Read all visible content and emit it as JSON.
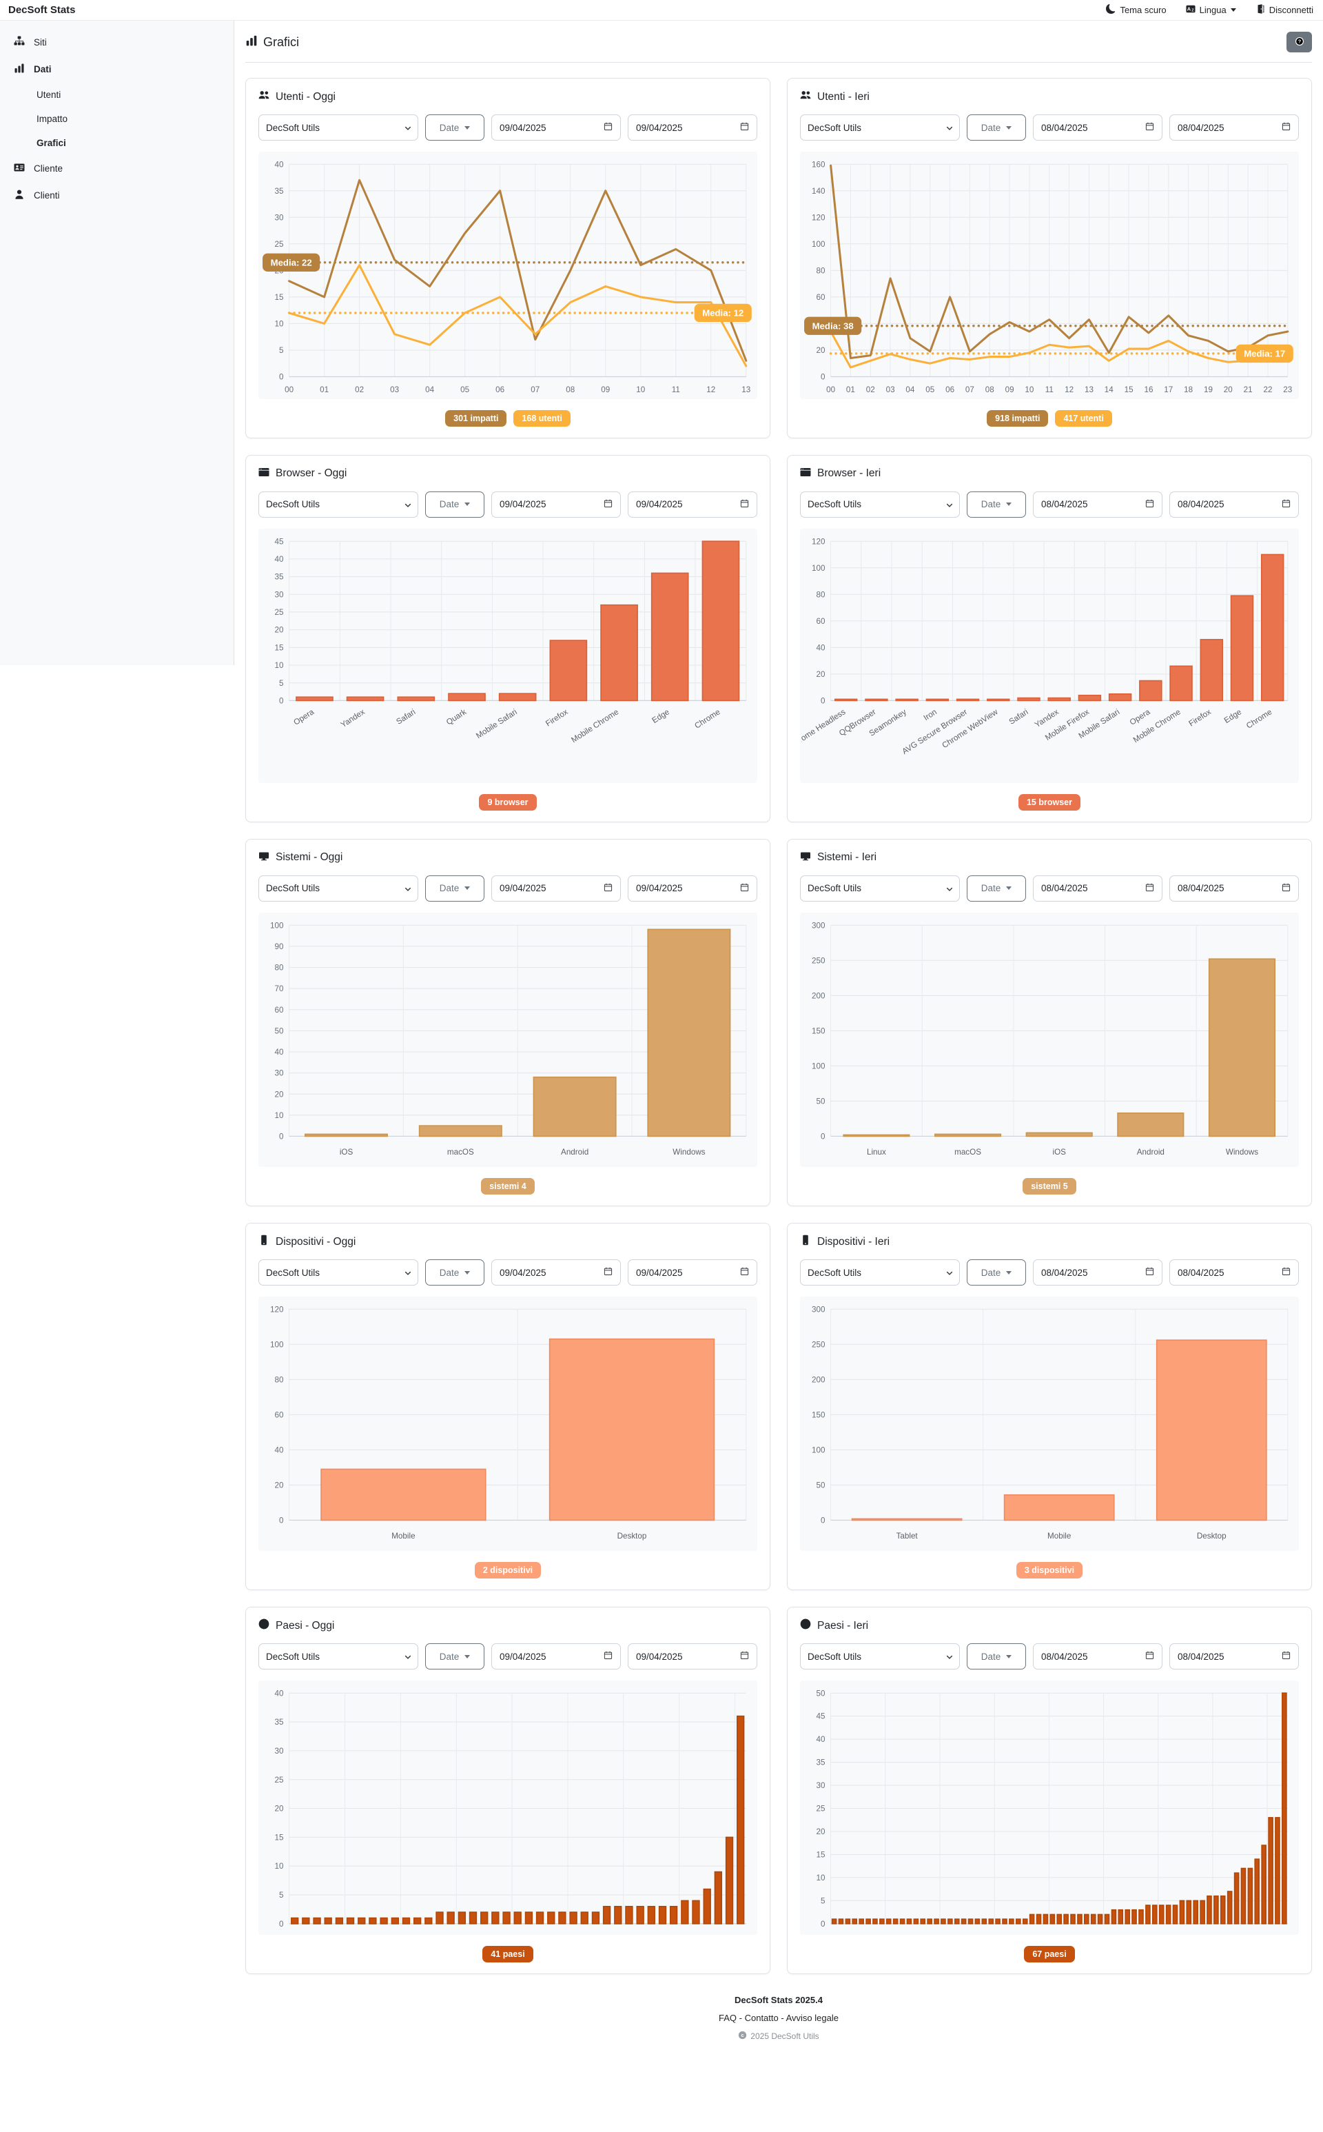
{
  "topbar": {
    "brand": "DecSoft Stats",
    "theme_label": "Tema scuro",
    "language_label": "Lingua",
    "logout_label": "Disconnetti"
  },
  "sidebar": {
    "items": [
      {
        "label": "Siti",
        "icon": "sitemap-icon",
        "bold": false,
        "indent": false
      },
      {
        "label": "Dati",
        "icon": "bar-chart-icon",
        "bold": true,
        "indent": false
      },
      {
        "label": "Utenti",
        "icon": null,
        "bold": false,
        "indent": true
      },
      {
        "label": "Impatto",
        "icon": null,
        "bold": false,
        "indent": true
      },
      {
        "label": "Grafici",
        "icon": null,
        "bold": true,
        "indent": true
      },
      {
        "label": "Cliente",
        "icon": "id-card-icon",
        "bold": false,
        "indent": false
      },
      {
        "label": "Clienti",
        "icon": "person-icon",
        "bold": false,
        "indent": false
      }
    ]
  },
  "header": {
    "title": "Grafici"
  },
  "cards": [
    {
      "id": "utenti-oggi",
      "icon": "people-icon",
      "title": "Utenti - Oggi",
      "site": "DecSoft Utils",
      "date_label": "Date",
      "date_from": "09/04/2025",
      "date_to": "09/04/2025",
      "badges": [
        {
          "label": "301 impatti",
          "color": "#b5813d"
        },
        {
          "label": "168 utenti",
          "color": "#fbb03a"
        }
      ],
      "chart_data": {
        "type": "line",
        "x": [
          "00",
          "01",
          "02",
          "03",
          "04",
          "05",
          "06",
          "07",
          "08",
          "09",
          "10",
          "11",
          "12",
          "13"
        ],
        "series": [
          {
            "name": "impatti",
            "color": "#b5813d",
            "values": [
              18,
              15,
              37,
              22,
              17,
              27,
              35,
              7,
              20,
              35,
              21,
              24,
              20,
              3
            ],
            "media": 21.5,
            "media_label": "Media: 22",
            "pill_side": "left"
          },
          {
            "name": "utenti",
            "color": "#fbb03a",
            "values": [
              12,
              10,
              21,
              8,
              6,
              12,
              15,
              8,
              14,
              17,
              15,
              14,
              14,
              2
            ],
            "media": 12,
            "media_label": "Media: 12",
            "pill_side": "right"
          }
        ],
        "ylim": [
          0,
          40
        ],
        "ystep": 5
      }
    },
    {
      "id": "utenti-ieri",
      "icon": "people-icon",
      "title": "Utenti - Ieri",
      "site": "DecSoft Utils",
      "date_label": "Date",
      "date_from": "08/04/2025",
      "date_to": "08/04/2025",
      "badges": [
        {
          "label": "918 impatti",
          "color": "#b5813d"
        },
        {
          "label": "417 utenti",
          "color": "#fbb03a"
        }
      ],
      "chart_data": {
        "type": "line",
        "x": [
          "00",
          "01",
          "02",
          "03",
          "04",
          "05",
          "06",
          "07",
          "08",
          "09",
          "10",
          "11",
          "12",
          "13",
          "14",
          "15",
          "16",
          "17",
          "18",
          "19",
          "20",
          "21",
          "22",
          "23"
        ],
        "series": [
          {
            "name": "impatti",
            "color": "#b5813d",
            "values": [
              159,
              14,
              16,
              74,
              29,
              19,
              60,
              19,
              32,
              41,
              34,
              43,
              29,
              43,
              18,
              45,
              33,
              46,
              31,
              27,
              19,
              22,
              31,
              34
            ],
            "media": 38.25,
            "media_label": "Media: 38",
            "pill_side": "left"
          },
          {
            "name": "utenti",
            "color": "#fbb03a",
            "values": [
              34,
              7,
              12,
              17,
              13,
              10,
              14,
              13,
              15,
              15,
              18,
              24,
              22,
              23,
              12,
              21,
              21,
              27,
              19,
              14,
              11,
              12,
              22,
              21
            ],
            "media": 17.4,
            "media_label": "Media: 17",
            "pill_side": "right"
          }
        ],
        "ylim": [
          0,
          160
        ],
        "ystep": 20
      }
    },
    {
      "id": "browser-oggi",
      "icon": "window-icon",
      "title": "Browser - Oggi",
      "site": "DecSoft Utils",
      "date_label": "Date",
      "date_from": "09/04/2025",
      "date_to": "09/04/2025",
      "badges": [
        {
          "label": "9 browser",
          "color": "#e8734d"
        }
      ],
      "chart_data": {
        "type": "bar",
        "categories": [
          "Opera",
          "Yandex",
          "Safari",
          "Quark",
          "Mobile Safari",
          "Firefox",
          "Mobile Chrome",
          "Edge",
          "Chrome"
        ],
        "values": [
          1,
          1,
          1,
          2,
          2,
          17,
          27,
          36,
          45
        ],
        "color": "#e8734d",
        "border": "#da6038",
        "ylim": [
          0,
          45
        ],
        "ystep": 5,
        "xlabels": "rotated"
      }
    },
    {
      "id": "browser-ieri",
      "icon": "window-icon",
      "title": "Browser - Ieri",
      "site": "DecSoft Utils",
      "date_label": "Date",
      "date_from": "08/04/2025",
      "date_to": "08/04/2025",
      "badges": [
        {
          "label": "15 browser",
          "color": "#e8734d"
        }
      ],
      "chart_data": {
        "type": "bar",
        "categories": [
          "Chrome Headless",
          "QQBrowser",
          "Seamonkey",
          "Iron",
          "AVG Secure Browser",
          "Chrome WebView",
          "Safari",
          "Yandex",
          "Mobile Firefox",
          "Mobile Safari",
          "Opera",
          "Mobile Chrome",
          "Firefox",
          "Edge",
          "Chrome"
        ],
        "values": [
          1,
          1,
          1,
          1,
          1,
          1,
          2,
          2,
          4,
          5,
          15,
          26,
          46,
          79,
          110
        ],
        "color": "#e8734d",
        "border": "#da6038",
        "ylim": [
          0,
          120
        ],
        "ystep": 20,
        "xlabels": "rotated"
      }
    },
    {
      "id": "sistemi-oggi",
      "icon": "display-icon",
      "title": "Sistemi - Oggi",
      "site": "DecSoft Utils",
      "date_label": "Date",
      "date_from": "09/04/2025",
      "date_to": "09/04/2025",
      "badges": [
        {
          "label": "sistemi 4",
          "color": "#d8a468"
        }
      ],
      "chart_data": {
        "type": "bar",
        "categories": [
          "iOS",
          "macOS",
          "Android",
          "Windows"
        ],
        "values": [
          1,
          5,
          28,
          98
        ],
        "color": "#d8a468",
        "border": "#c9954f",
        "ylim": [
          0,
          100
        ],
        "ystep": 10,
        "xlabels": "horizontal"
      }
    },
    {
      "id": "sistemi-ieri",
      "icon": "display-icon",
      "title": "Sistemi - Ieri",
      "site": "DecSoft Utils",
      "date_label": "Date",
      "date_from": "08/04/2025",
      "date_to": "08/04/2025",
      "badges": [
        {
          "label": "sistemi 5",
          "color": "#d8a468"
        }
      ],
      "chart_data": {
        "type": "bar",
        "categories": [
          "Linux",
          "macOS",
          "iOS",
          "Android",
          "Windows"
        ],
        "values": [
          1,
          3,
          5,
          33,
          252
        ],
        "color": "#d8a468",
        "border": "#c9954f",
        "ylim": [
          0,
          300
        ],
        "ystep": 50,
        "xlabels": "horizontal"
      }
    },
    {
      "id": "dispositivi-oggi",
      "icon": "phone-icon",
      "title": "Dispositivi - Oggi",
      "site": "DecSoft Utils",
      "date_label": "Date",
      "date_from": "09/04/2025",
      "date_to": "09/04/2025",
      "badges": [
        {
          "label": "2 dispositivi",
          "color": "#fca078"
        }
      ],
      "chart_data": {
        "type": "bar",
        "categories": [
          "Mobile",
          "Desktop"
        ],
        "values": [
          29,
          103
        ],
        "color": "#fca078",
        "border": "#ef8a60",
        "ylim": [
          0,
          120
        ],
        "ystep": 20,
        "xlabels": "horizontal"
      }
    },
    {
      "id": "dispositivi-ieri",
      "icon": "phone-icon",
      "title": "Dispositivi - Ieri",
      "site": "DecSoft Utils",
      "date_label": "Date",
      "date_from": "08/04/2025",
      "date_to": "08/04/2025",
      "badges": [
        {
          "label": "3 dispositivi",
          "color": "#fca078"
        }
      ],
      "chart_data": {
        "type": "bar",
        "categories": [
          "Tablet",
          "Mobile",
          "Desktop"
        ],
        "values": [
          2,
          36,
          256
        ],
        "color": "#fca078",
        "border": "#ef8a60",
        "ylim": [
          0,
          300
        ],
        "ystep": 50,
        "xlabels": "horizontal"
      }
    },
    {
      "id": "paesi-oggi",
      "icon": "globe-icon",
      "title": "Paesi - Oggi",
      "site": "DecSoft Utils",
      "date_label": "Date",
      "date_from": "09/04/2025",
      "date_to": "09/04/2025",
      "badges": [
        {
          "label": "41 paesi",
          "color": "#c6500c"
        }
      ],
      "chart_data": {
        "type": "bar",
        "categories": [],
        "values": [
          1,
          1,
          1,
          1,
          1,
          1,
          1,
          1,
          1,
          1,
          1,
          1,
          1,
          2,
          2,
          2,
          2,
          2,
          2,
          2,
          2,
          2,
          2,
          2,
          2,
          2,
          2,
          2,
          3,
          3,
          3,
          3,
          3,
          3,
          3,
          4,
          4,
          6,
          9,
          15,
          36
        ],
        "color": "#c6500c",
        "border": "#b04708",
        "ylim": [
          0,
          40
        ],
        "ystep": 5,
        "xlabels": "none"
      }
    },
    {
      "id": "paesi-ieri",
      "icon": "globe-icon",
      "title": "Paesi - Ieri",
      "site": "DecSoft Utils",
      "date_label": "Date",
      "date_from": "08/04/2025",
      "date_to": "08/04/2025",
      "badges": [
        {
          "label": "67 paesi",
          "color": "#c6500c"
        }
      ],
      "chart_data": {
        "type": "bar",
        "categories": [],
        "values": [
          1,
          1,
          1,
          1,
          1,
          1,
          1,
          1,
          1,
          1,
          1,
          1,
          1,
          1,
          1,
          1,
          1,
          1,
          1,
          1,
          1,
          1,
          1,
          1,
          1,
          1,
          1,
          1,
          1,
          2,
          2,
          2,
          2,
          2,
          2,
          2,
          2,
          2,
          2,
          2,
          2,
          3,
          3,
          3,
          3,
          3,
          4,
          4,
          4,
          4,
          4,
          5,
          5,
          5,
          5,
          6,
          6,
          6,
          7,
          11,
          12,
          12,
          14,
          17,
          23,
          23,
          50
        ],
        "color": "#c6500c",
        "border": "#b04708",
        "ylim": [
          0,
          50
        ],
        "ystep": 5,
        "xlabels": "none"
      }
    }
  ],
  "footer": {
    "version": "DecSoft Stats 2025.4",
    "links": [
      "FAQ",
      "Contatto",
      "Avviso legale"
    ],
    "separator": " - ",
    "copyright": "2025 DecSoft Utils"
  }
}
